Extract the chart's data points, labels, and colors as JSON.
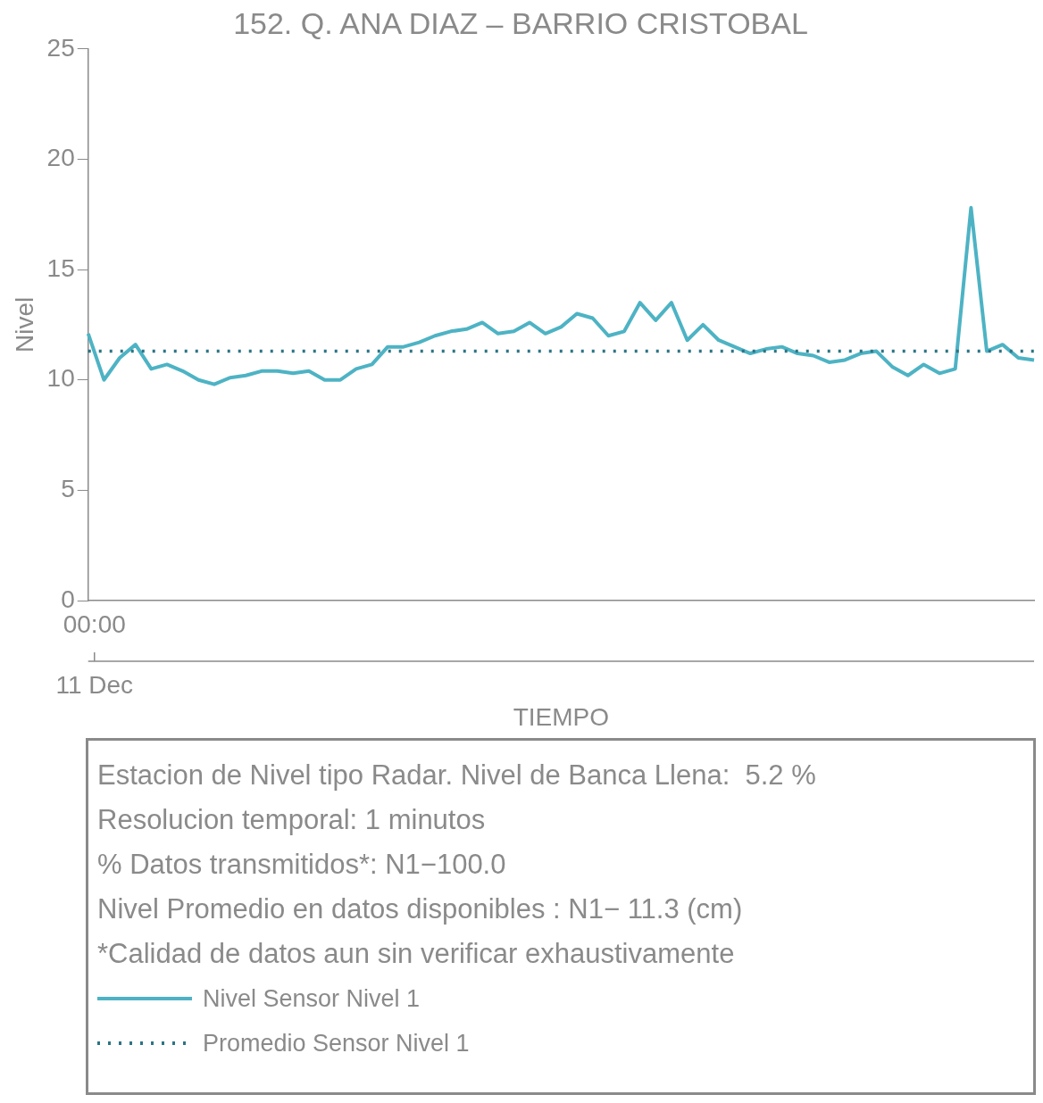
{
  "chart_data": {
    "type": "line",
    "title": "152. Q. ANA DIAZ – BARRIO CRISTOBAL",
    "xlabel": "TIEMPO",
    "ylabel": "Nivel",
    "categories": [
      null,
      null,
      null,
      null,
      null,
      null,
      null,
      null,
      null,
      null,
      null,
      null,
      null,
      null,
      null,
      null,
      null,
      null,
      null,
      null,
      null,
      null,
      null,
      null,
      null,
      null,
      null,
      null,
      null,
      null,
      null,
      null,
      null,
      null,
      null,
      null,
      null,
      null,
      null,
      null,
      null,
      null,
      null,
      null,
      null,
      null,
      null,
      null,
      null,
      null,
      null,
      null,
      null,
      null,
      null,
      null,
      null,
      null,
      null,
      null,
      null
    ],
    "ylim": [
      0,
      25
    ],
    "yticks": [
      0,
      5,
      10,
      15,
      20,
      25
    ],
    "grid": false,
    "legend": "bottom",
    "marker": "none",
    "series": [
      {
        "name": "Nivel Sensor Nivel 1",
        "color": "#4db3c4",
        "line_style": "solid",
        "values": [
          12.1,
          10.0,
          11.0,
          11.6,
          10.5,
          10.7,
          10.4,
          10.0,
          9.8,
          10.1,
          10.2,
          10.4,
          10.4,
          10.3,
          10.4,
          10.0,
          10.0,
          10.5,
          10.7,
          11.5,
          11.5,
          11.7,
          12.0,
          12.2,
          12.3,
          12.6,
          12.1,
          12.2,
          12.6,
          12.1,
          12.4,
          13.0,
          12.8,
          12.0,
          12.2,
          13.5,
          12.7,
          13.5,
          11.8,
          12.5,
          11.8,
          11.5,
          11.2,
          11.4,
          11.5,
          11.2,
          11.1,
          10.8,
          10.9,
          11.2,
          11.3,
          10.6,
          10.2,
          10.7,
          10.3,
          10.5,
          17.8,
          11.3,
          11.6,
          11.0,
          10.9
        ]
      }
    ],
    "ref_lines": [
      {
        "axis": "y",
        "value": 11.3,
        "label": "Promedio Sensor Nivel 1",
        "color": "#2b7485",
        "line_style": "dotted"
      }
    ],
    "annotations": [
      "00:00",
      "11 Dec",
      "Estacion de Nivel tipo Radar. Nivel de Banca Llena:  5.2 %",
      "Resolucion temporal: 1 minutos",
      "% Datos transmitidos*: N1−100.0",
      "Nivel Promedio en datos disponibles : N1− 11.3 (cm)",
      "*Calidad de datos aun sin verificar exhaustivamente"
    ]
  }
}
